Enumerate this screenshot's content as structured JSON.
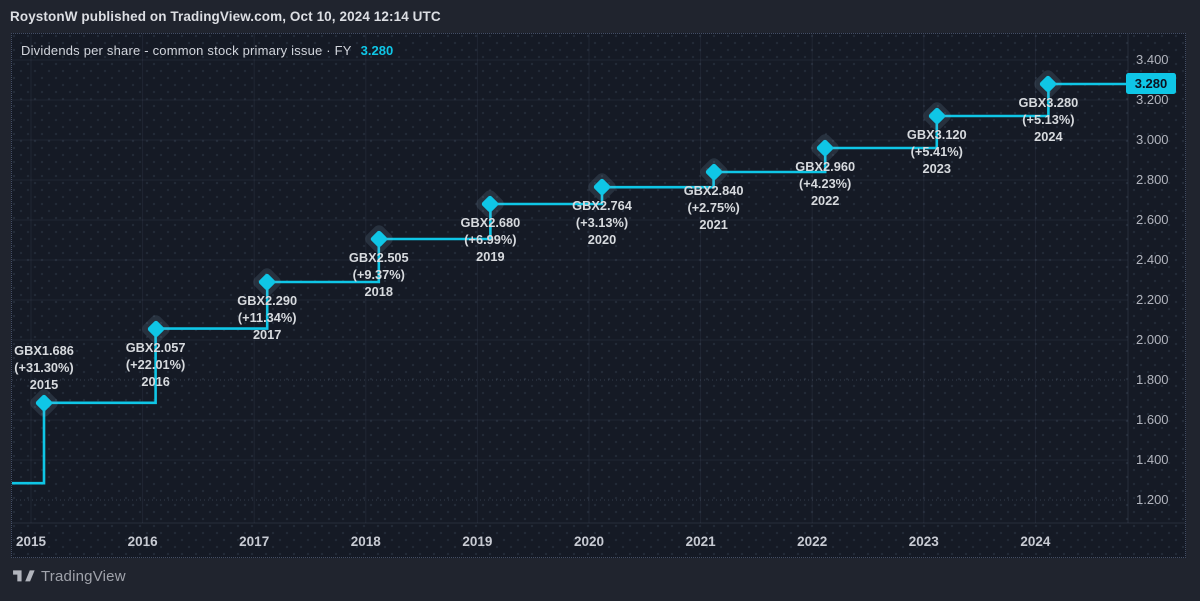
{
  "header": {
    "attribution": "RoystonW published on TradingView.com, Oct 10, 2024 12:14 UTC"
  },
  "chart": {
    "title": "Dividends per share - common stock primary issue · FY",
    "current_value": "3.280",
    "badge": "3.280"
  },
  "chart_data": {
    "type": "line",
    "style": "step-after",
    "title": "Dividends per share - common stock primary issue · FY",
    "unit": "GBX",
    "legend": "none",
    "grid": "on",
    "lead_in_value": 1.284,
    "ylim": [
      1.13,
      3.47
    ],
    "x_years": [
      "2015",
      "2016",
      "2017",
      "2018",
      "2019",
      "2020",
      "2021",
      "2022",
      "2023",
      "2024"
    ],
    "points": [
      {
        "year": "2015",
        "value": 1.686,
        "value_label": "GBX1.686",
        "pct_label": "(+31.30%)",
        "label_position": "above"
      },
      {
        "year": "2016",
        "value": 2.057,
        "value_label": "GBX2.057",
        "pct_label": "(+22.01%)",
        "label_position": "below"
      },
      {
        "year": "2017",
        "value": 2.29,
        "value_label": "GBX2.290",
        "pct_label": "(+11.34%)",
        "label_position": "below"
      },
      {
        "year": "2018",
        "value": 2.505,
        "value_label": "GBX2.505",
        "pct_label": "(+9.37%)",
        "label_position": "below"
      },
      {
        "year": "2019",
        "value": 2.68,
        "value_label": "GBX2.680",
        "pct_label": "(+6.99%)",
        "label_position": "below"
      },
      {
        "year": "2020",
        "value": 2.764,
        "value_label": "GBX2.764",
        "pct_label": "(+3.13%)",
        "label_position": "below"
      },
      {
        "year": "2021",
        "value": 2.84,
        "value_label": "GBX2.840",
        "pct_label": "(+2.75%)",
        "label_position": "below"
      },
      {
        "year": "2022",
        "value": 2.96,
        "value_label": "GBX2.960",
        "pct_label": "(+4.23%)",
        "label_position": "below"
      },
      {
        "year": "2023",
        "value": 3.12,
        "value_label": "GBX3.120",
        "pct_label": "(+5.41%)",
        "label_position": "below"
      },
      {
        "year": "2024",
        "value": 3.28,
        "value_label": "GBX3.280",
        "pct_label": "(+5.13%)",
        "label_position": "below"
      }
    ],
    "y_ticks": [
      {
        "label": "3.400",
        "value": 3.4,
        "dotted": false
      },
      {
        "label": "3.200",
        "value": 3.2,
        "dotted": false
      },
      {
        "label": "3.000",
        "value": 3.0,
        "dotted": false
      },
      {
        "label": "2.800",
        "value": 2.8,
        "dotted": false
      },
      {
        "label": "2.600",
        "value": 2.6,
        "dotted": false
      },
      {
        "label": "2.400",
        "value": 2.4,
        "dotted": false
      },
      {
        "label": "2.200",
        "value": 2.2,
        "dotted": false
      },
      {
        "label": "2.000",
        "value": 2.0,
        "dotted": false
      },
      {
        "label": "1.800",
        "value": 1.8,
        "dotted": true
      },
      {
        "label": "1.600",
        "value": 1.6,
        "dotted": false
      },
      {
        "label": "1.400",
        "value": 1.4,
        "dotted": false
      },
      {
        "label": "1.200",
        "value": 1.2,
        "dotted": true
      }
    ],
    "last_value_badge": "3.280"
  },
  "footer": {
    "logo_text": "TradingView"
  },
  "colors": {
    "accent": "#0fc6e6",
    "page_bg": "#20242e",
    "pane_bg": "#151a25",
    "badge_text": "#0d1220"
  }
}
